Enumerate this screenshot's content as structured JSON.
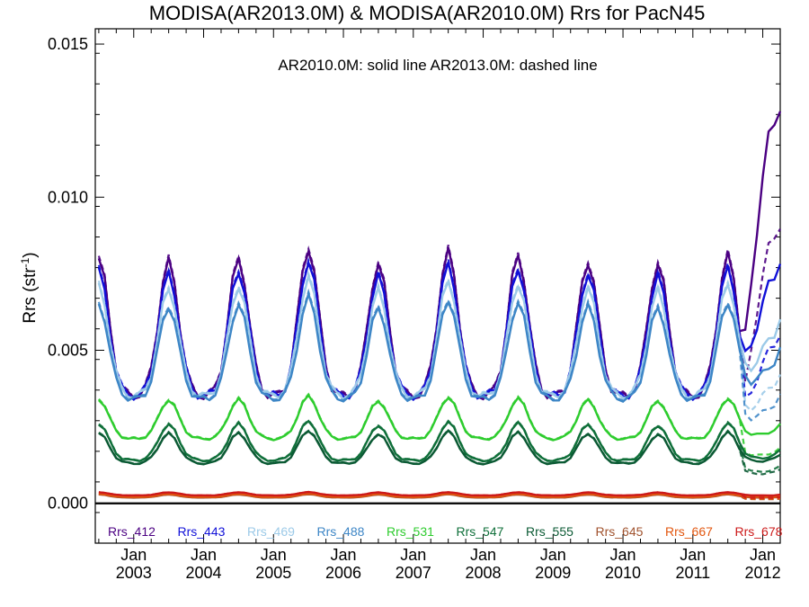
{
  "chart_data": {
    "type": "line",
    "title": "MODISA(AR2013.0M) & MODISA(AR2010.0M)  Rrs for PacN45",
    "annotation": "AR2010.0M: solid line   AR2013.0M: dashed line",
    "ylabel": "Rrs (str",
    "ylabel_sup": "-1",
    "ylabel_close": ")",
    "xlabel": "",
    "xlim": [
      2002.45,
      2012.25
    ],
    "ylim": [
      -0.0013,
      0.0155
    ],
    "yticks": [
      {
        "value": 0.0,
        "label": "0.000"
      },
      {
        "value": 0.005,
        "label": "0.005"
      },
      {
        "value": 0.01,
        "label": "0.010"
      },
      {
        "value": 0.015,
        "label": "0.015"
      }
    ],
    "xticks": [
      {
        "value": 2003.0,
        "month": "Jan",
        "year": "2003"
      },
      {
        "value": 2004.0,
        "month": "Jan",
        "year": "2004"
      },
      {
        "value": 2005.0,
        "month": "Jan",
        "year": "2005"
      },
      {
        "value": 2006.0,
        "month": "Jan",
        "year": "2006"
      },
      {
        "value": 2007.0,
        "month": "Jan",
        "year": "2007"
      },
      {
        "value": 2008.0,
        "month": "Jan",
        "year": "2008"
      },
      {
        "value": 2009.0,
        "month": "Jan",
        "year": "2009"
      },
      {
        "value": 2010.0,
        "month": "Jan",
        "year": "2010"
      },
      {
        "value": 2011.0,
        "month": "Jan",
        "year": "2011"
      },
      {
        "value": 2012.0,
        "month": "Jan",
        "year": "2012"
      }
    ],
    "grid": false,
    "legend_position": "bottom, inside plot",
    "zero_line": true,
    "model": {
      "start": 2002.5,
      "end": 2012.25,
      "step": 0.0833333,
      "peak_phase": 0.5,
      "peak_width": 0.14,
      "peak_scale": [
        1.0,
        0.98,
        1.0,
        1.08,
        0.96,
        1.05,
        1.02,
        0.98,
        0.96,
        1.02,
        1.0,
        1.05,
        1.22
      ]
    },
    "series": [
      {
        "name": "Rrs_412",
        "color": "#4b0082",
        "base": 0.0035,
        "amp": 0.0045,
        "end_rise": 0.0085
      },
      {
        "name": "Rrs_443",
        "color": "#1010d8",
        "base": 0.0035,
        "amp": 0.0041,
        "end_rise": 0.0036
      },
      {
        "name": "Rrs_469",
        "color": "#9ccae8",
        "base": 0.0035,
        "amp": 0.0036,
        "end_rise": 0.0018
      },
      {
        "name": "Rrs_488",
        "color": "#3d86c6",
        "base": 0.0034,
        "amp": 0.0031,
        "end_rise": 0.001
      },
      {
        "name": "Rrs_531",
        "color": "#2ecc2e",
        "base": 0.0021,
        "amp": 0.0013,
        "end_rise": 0.0002
      },
      {
        "name": "Rrs_547",
        "color": "#0f6f3a",
        "base": 0.0014,
        "amp": 0.0012,
        "end_rise": 0.0001
      },
      {
        "name": "Rrs_555",
        "color": "#0b5a34",
        "base": 0.0013,
        "amp": 0.001,
        "end_rise": 0.0001
      },
      {
        "name": "Rrs_645",
        "color": "#a0522d",
        "base": 0.00019,
        "amp": 0.0001,
        "end_rise": 0.0
      },
      {
        "name": "Rrs_667",
        "color": "#e2560e",
        "base": 0.00021,
        "amp": 0.0001,
        "end_rise": 0.0
      },
      {
        "name": "Rrs_678",
        "color": "#cc1a1a",
        "base": 0.00026,
        "amp": 0.0001,
        "end_rise": 0.0
      }
    ]
  }
}
